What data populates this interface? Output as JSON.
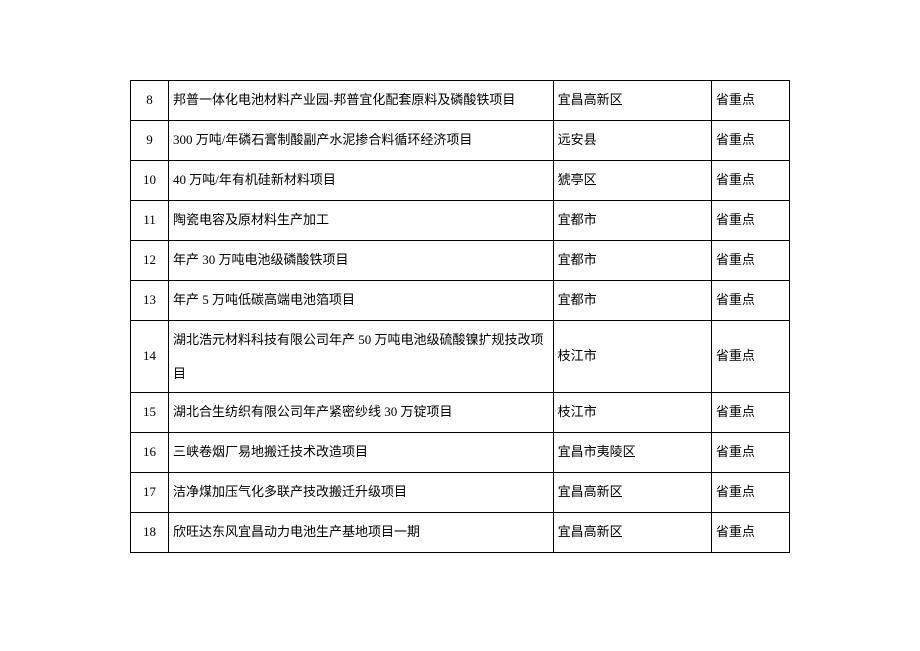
{
  "columns": {
    "num_width": 38,
    "name_width": 384,
    "loc_width": 158,
    "lvl_width": 78
  },
  "colors": {
    "border": "#000000",
    "text": "#000000",
    "background": "#ffffff"
  },
  "font": {
    "family": "SimSun",
    "size_pt": 10
  },
  "rows": [
    {
      "num": "8",
      "name": "邦普一体化电池材料产业园-邦普宜化配套原料及磷酸铁项目",
      "loc": "宜昌高新区",
      "lvl": "省重点",
      "multiline": false
    },
    {
      "num": "9",
      "name": "300 万吨/年磷石膏制酸副产水泥掺合料循环经济项目",
      "loc": "远安县",
      "lvl": "省重点",
      "multiline": false
    },
    {
      "num": "10",
      "name": "40 万吨/年有机硅新材料项目",
      "loc": "猇亭区",
      "lvl": "省重点",
      "multiline": false
    },
    {
      "num": "11",
      "name": "陶瓷电容及原材料生产加工",
      "loc": "宜都市",
      "lvl": "省重点",
      "multiline": false
    },
    {
      "num": "12",
      "name": "年产 30 万吨电池级磷酸铁项目",
      "loc": "宜都市",
      "lvl": "省重点",
      "multiline": false
    },
    {
      "num": "13",
      "name": "年产 5 万吨低碳高端电池箔项目",
      "loc": "宜都市",
      "lvl": "省重点",
      "multiline": false
    },
    {
      "num": "14",
      "name": "湖北浩元材料科技有限公司年产 50 万吨电池级硫酸镍扩规技改项目",
      "loc": "枝江市",
      "lvl": "省重点",
      "multiline": true
    },
    {
      "num": "15",
      "name": "湖北合生纺织有限公司年产紧密纱线 30 万锭项目",
      "loc": "枝江市",
      "lvl": "省重点",
      "multiline": false
    },
    {
      "num": "16",
      "name": "三峡卷烟厂易地搬迁技术改造项目",
      "loc": "宜昌市夷陵区",
      "lvl": "省重点",
      "multiline": false
    },
    {
      "num": "17",
      "name": "洁净煤加压气化多联产技改搬迁升级项目",
      "loc": "宜昌高新区",
      "lvl": "省重点",
      "multiline": false
    },
    {
      "num": "18",
      "name": "欣旺达东风宜昌动力电池生产基地项目一期",
      "loc": "宜昌高新区",
      "lvl": "省重点",
      "multiline": false
    }
  ]
}
